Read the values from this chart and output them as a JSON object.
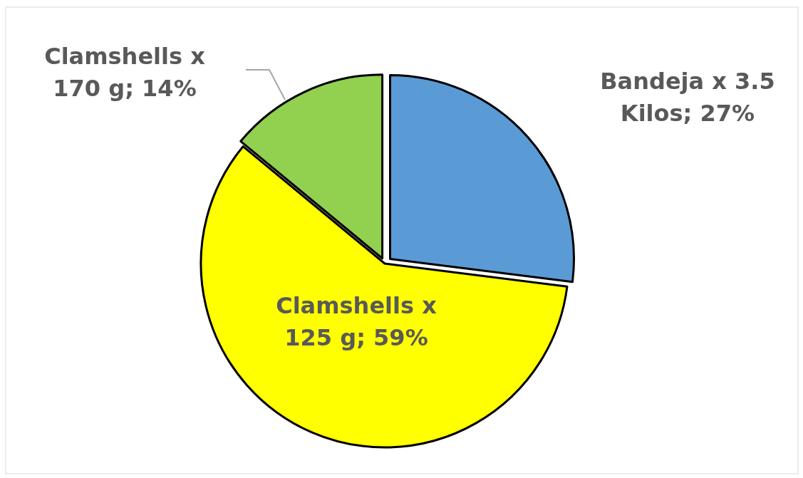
{
  "chart_data": {
    "type": "pie",
    "categories": [
      "Bandeja x 3.5 Kilos",
      "Clamshells x 125 g",
      "Clamshells x 170 g"
    ],
    "values": [
      27,
      59,
      14
    ],
    "value_labels": [
      "27%",
      "59%",
      "14%"
    ],
    "colors": [
      "#5b9bd5",
      "#ffff00",
      "#92d050"
    ]
  }
}
